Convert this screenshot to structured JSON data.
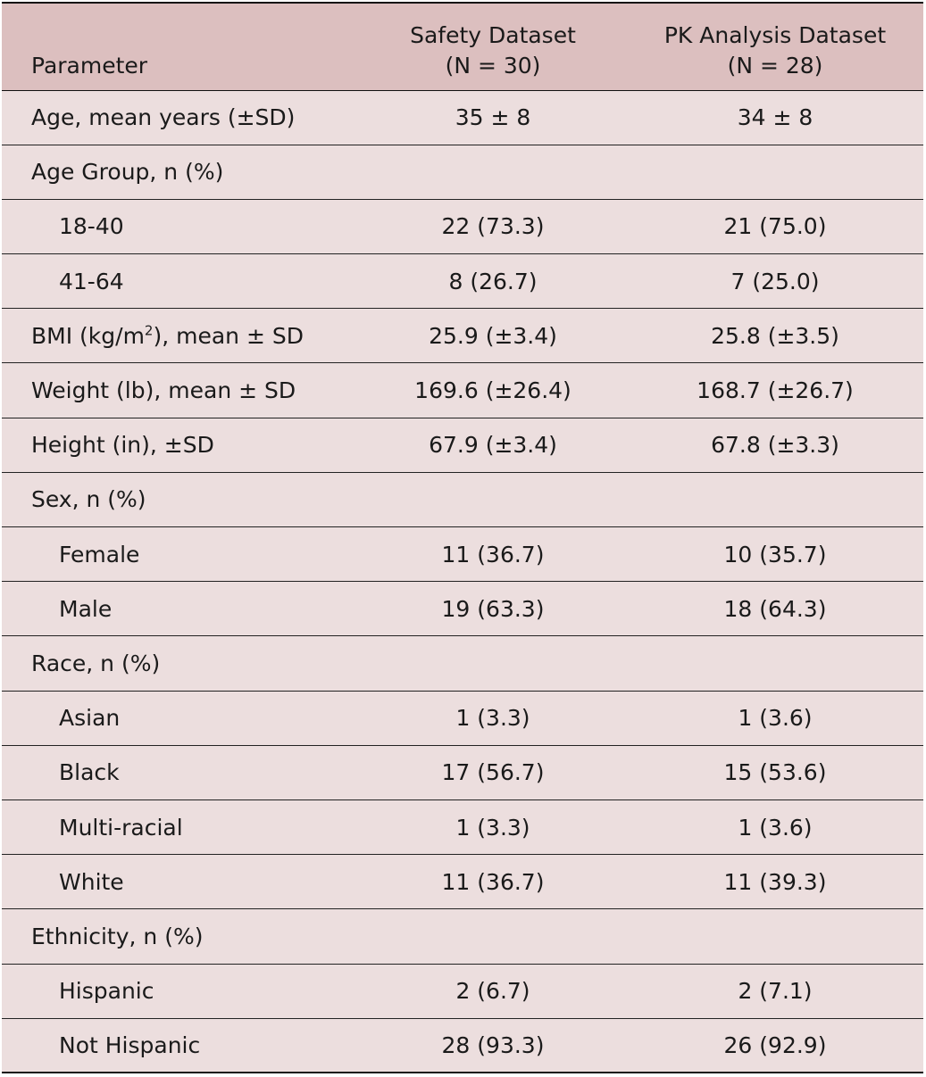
{
  "header": {
    "parameter": "Parameter",
    "safety_title": "Safety Dataset",
    "safety_n": "(N = 30)",
    "pk_title": "PK Analysis Dataset",
    "pk_n": "(N = 28)"
  },
  "rows": {
    "age_mean": {
      "label": "Age, mean years (±SD)",
      "safety": "35 ± 8",
      "pk": "34 ± 8"
    },
    "age_group": {
      "label": "Age Group, n (%)"
    },
    "age_18_40": {
      "label": "18-40",
      "safety": "22 (73.3)",
      "pk": "21 (75.0)"
    },
    "age_41_64": {
      "label": "41-64",
      "safety": "8 (26.7)",
      "pk": "7 (25.0)"
    },
    "bmi": {
      "label_pre": "BMI (kg/m",
      "label_sup": "2",
      "label_post": "), mean ± SD",
      "safety": "25.9 (±3.4)",
      "pk": "25.8 (±3.5)"
    },
    "weight": {
      "label": "Weight (lb), mean ± SD",
      "safety": "169.6 (±26.4)",
      "pk": "168.7 (±26.7)"
    },
    "height": {
      "label": "Height (in), ±SD",
      "safety": "67.9 (±3.4)",
      "pk": "67.8 (±3.3)"
    },
    "sex": {
      "label": "Sex, n (%)"
    },
    "female": {
      "label": "Female",
      "safety": "11 (36.7)",
      "pk": "10 (35.7)"
    },
    "male": {
      "label": "Male",
      "safety": "19 (63.3)",
      "pk": "18 (64.3)"
    },
    "race": {
      "label": "Race, n (%)"
    },
    "asian": {
      "label": "Asian",
      "safety": "1 (3.3)",
      "pk": "1 (3.6)"
    },
    "black": {
      "label": "Black",
      "safety": "17 (56.7)",
      "pk": "15 (53.6)"
    },
    "multiracial": {
      "label": "Multi-racial",
      "safety": "1 (3.3)",
      "pk": "1 (3.6)"
    },
    "white": {
      "label": "White",
      "safety": "11 (36.7)",
      "pk": "11 (39.3)"
    },
    "ethnicity": {
      "label": "Ethnicity, n (%)"
    },
    "hispanic": {
      "label": "Hispanic",
      "safety": "2 (6.7)",
      "pk": "2 (7.1)"
    },
    "not_hispanic": {
      "label": "Not Hispanic",
      "safety": "28 (93.3)",
      "pk": "26 (92.9)"
    }
  },
  "colors": {
    "header_bg": "#dcbfbf",
    "row_bg": "#ecdede",
    "rule": "#111111"
  }
}
